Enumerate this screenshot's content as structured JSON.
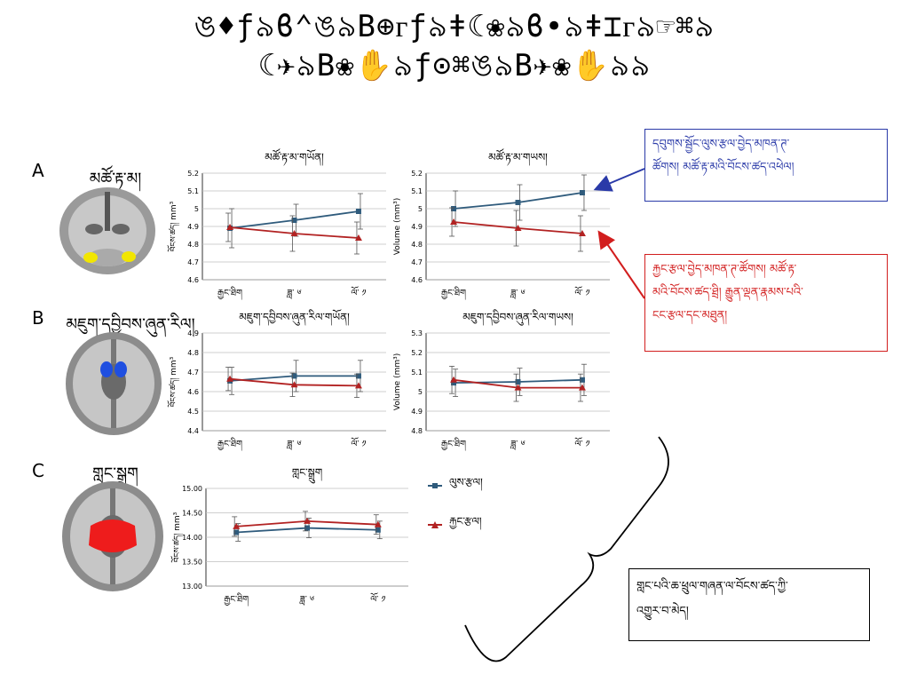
{
  "title": "ঙ♦ƒ৯ϐ⌃ঙ৯B⊕ᴦƒ৯ǂ☾❀৯ϐ•৯ǂ⌶ᴦ৯☞⌘৯\n☾✈৯B❀✋৯ƒ⊙⌘ঙ৯B✈❀✋৯৯",
  "rows": [
    {
      "letter": "A",
      "region_label": "མཚོ་རྟ་མ།"
    },
    {
      "letter": "B",
      "region_label": "མཇུག་དབྱིབས་ཞུན་རིལ།"
    },
    {
      "letter": "C",
      "region_label": "གླང་སྒྲུག"
    }
  ],
  "colors": {
    "healthy_series": "#2f5b7c",
    "patient_series": "#b22222",
    "blue_callout": "#2a3aa8",
    "red_callout": "#d21e1e",
    "hippocampus_marker": "#f2e600",
    "caudate_marker": "#1f4fe0",
    "putamen_marker": "#ee1c1c"
  },
  "chart_data": [
    {
      "type": "line",
      "id": "A_left",
      "title": "མཚོ་རྟ་མ་གཡོན།",
      "ylabel": "བོངས་ཚད། mm³",
      "categories": [
        "རྒྱང་ཐིག",
        "ཟླ་ ༦",
        "ལོ་ ༡"
      ],
      "ylim": [
        4.6,
        5.2
      ],
      "yticks": [
        "4.6",
        "4.7",
        "4.8",
        "4.9",
        "5",
        "5.1",
        "5.2"
      ],
      "series": [
        {
          "name": "ལུས་རྩལ།",
          "values": [
            4.89,
            4.935,
            4.985
          ],
          "err": [
            0.11,
            0.09,
            0.1
          ]
        },
        {
          "name": "རྐྱང་རྩལ།",
          "values": [
            4.895,
            4.86,
            4.835
          ],
          "err": [
            0.08,
            0.1,
            0.09
          ]
        }
      ]
    },
    {
      "type": "line",
      "id": "A_right",
      "title": "མཚོ་རྟ་མ་གཡས།",
      "ylabel": "Volume (mm³)",
      "categories": [
        "རྒྱང་ཐིག",
        "ཟླ་ ༦",
        "ལོ་ ༡"
      ],
      "ylim": [
        4.6,
        5.2
      ],
      "yticks": [
        "4.6",
        "4.7",
        "4.8",
        "4.9",
        "5",
        "5.1",
        "5.2"
      ],
      "series": [
        {
          "name": "ལུས་རྩལ།",
          "values": [
            5.0,
            5.035,
            5.09
          ],
          "err": [
            0.1,
            0.1,
            0.1
          ]
        },
        {
          "name": "རྐྱང་རྩལ།",
          "values": [
            4.925,
            4.89,
            4.86
          ],
          "err": [
            0.08,
            0.1,
            0.1
          ]
        }
      ]
    },
    {
      "type": "line",
      "id": "B_left",
      "title": "མཇུག་དབྱིབས་ཞུན་རིལ་གཡོན།",
      "ylabel": "བོངས་ཚད། mm³",
      "categories": [
        "རྒྱང་ཐིག",
        "ཟླ་ ༦",
        "ལོ་ ༡"
      ],
      "ylim": [
        4.4,
        4.9
      ],
      "yticks": [
        "4.4",
        "4.5",
        "4.6",
        "4.7",
        "4.8",
        "4.9"
      ],
      "series": [
        {
          "name": "ལུས་རྩལ།",
          "values": [
            4.655,
            4.68,
            4.68
          ],
          "err": [
            0.07,
            0.08,
            0.08
          ]
        },
        {
          "name": "རྐྱང་རྩལ།",
          "values": [
            4.665,
            4.635,
            4.63
          ],
          "err": [
            0.06,
            0.06,
            0.06
          ]
        }
      ]
    },
    {
      "type": "line",
      "id": "B_right",
      "title": "མཇུག་དབྱིབས་ཞུན་རིལ་གཡས།",
      "ylabel": "Volume (mm³)",
      "categories": [
        "རྒྱང་ཐིག",
        "ཟླ་ ༦",
        "ལོ་ ༡"
      ],
      "ylim": [
        4.8,
        5.3
      ],
      "yticks": [
        "4.8",
        "4.9",
        "5",
        "5.1",
        "5.2",
        "5.3"
      ],
      "series": [
        {
          "name": "ལུས་རྩལ།",
          "values": [
            5.045,
            5.05,
            5.06
          ],
          "err": [
            0.07,
            0.07,
            0.08
          ]
        },
        {
          "name": "རྐྱང་རྩལ།",
          "values": [
            5.06,
            5.02,
            5.02
          ],
          "err": [
            0.07,
            0.07,
            0.07
          ]
        }
      ]
    },
    {
      "type": "line",
      "id": "C",
      "title": "གླང་སྒྲུག",
      "ylabel": "བོངས་ཚད། mm³",
      "categories": [
        "རྒྱང་ཐིག",
        "ཟླ་ ༦",
        "ལོ་ ༡"
      ],
      "ylim": [
        13.0,
        15.0
      ],
      "yticks": [
        "13.00",
        "13.50",
        "14.00",
        "14.50",
        "15.00"
      ],
      "series": [
        {
          "name": "ལུས་རྩལ།",
          "values": [
            14.1,
            14.19,
            14.15
          ],
          "err": [
            0.18,
            0.2,
            0.18
          ]
        },
        {
          "name": "རྐྱང་རྩལ།",
          "values": [
            14.22,
            14.33,
            14.26
          ],
          "err": [
            0.2,
            0.2,
            0.2
          ]
        }
      ]
    }
  ],
  "legend": {
    "healthy": "ལུས་རྩལ།",
    "patient": "རྐྱང་རྩལ།"
  },
  "callouts": {
    "blue": "དབུགས་སྦྱོང་ལུས་རྩལ་བྱེད་མཁན་ཊ་\nཚོགས། མཚོ་རྟ་མའི་བོངས་ཚད་འཕེལ།",
    "red": "རྐྱང་རྩལ་བྱེད་མཁན་ཊ་ཚོགས།  མཚོ་རྟ་\nམའི་བོངས་ཚད་ཐྲི། རྒྱུན་ལྡན་རྣམས་པའི་\nངང་རྩལ་དང་མཐུན།",
    "black": "གླང་པའི་ཆ་ཕྲུལ་གཞན་ལ་བོངས་ཚད་ཀྱི་\nའགྱུར་བ་མེད།"
  }
}
